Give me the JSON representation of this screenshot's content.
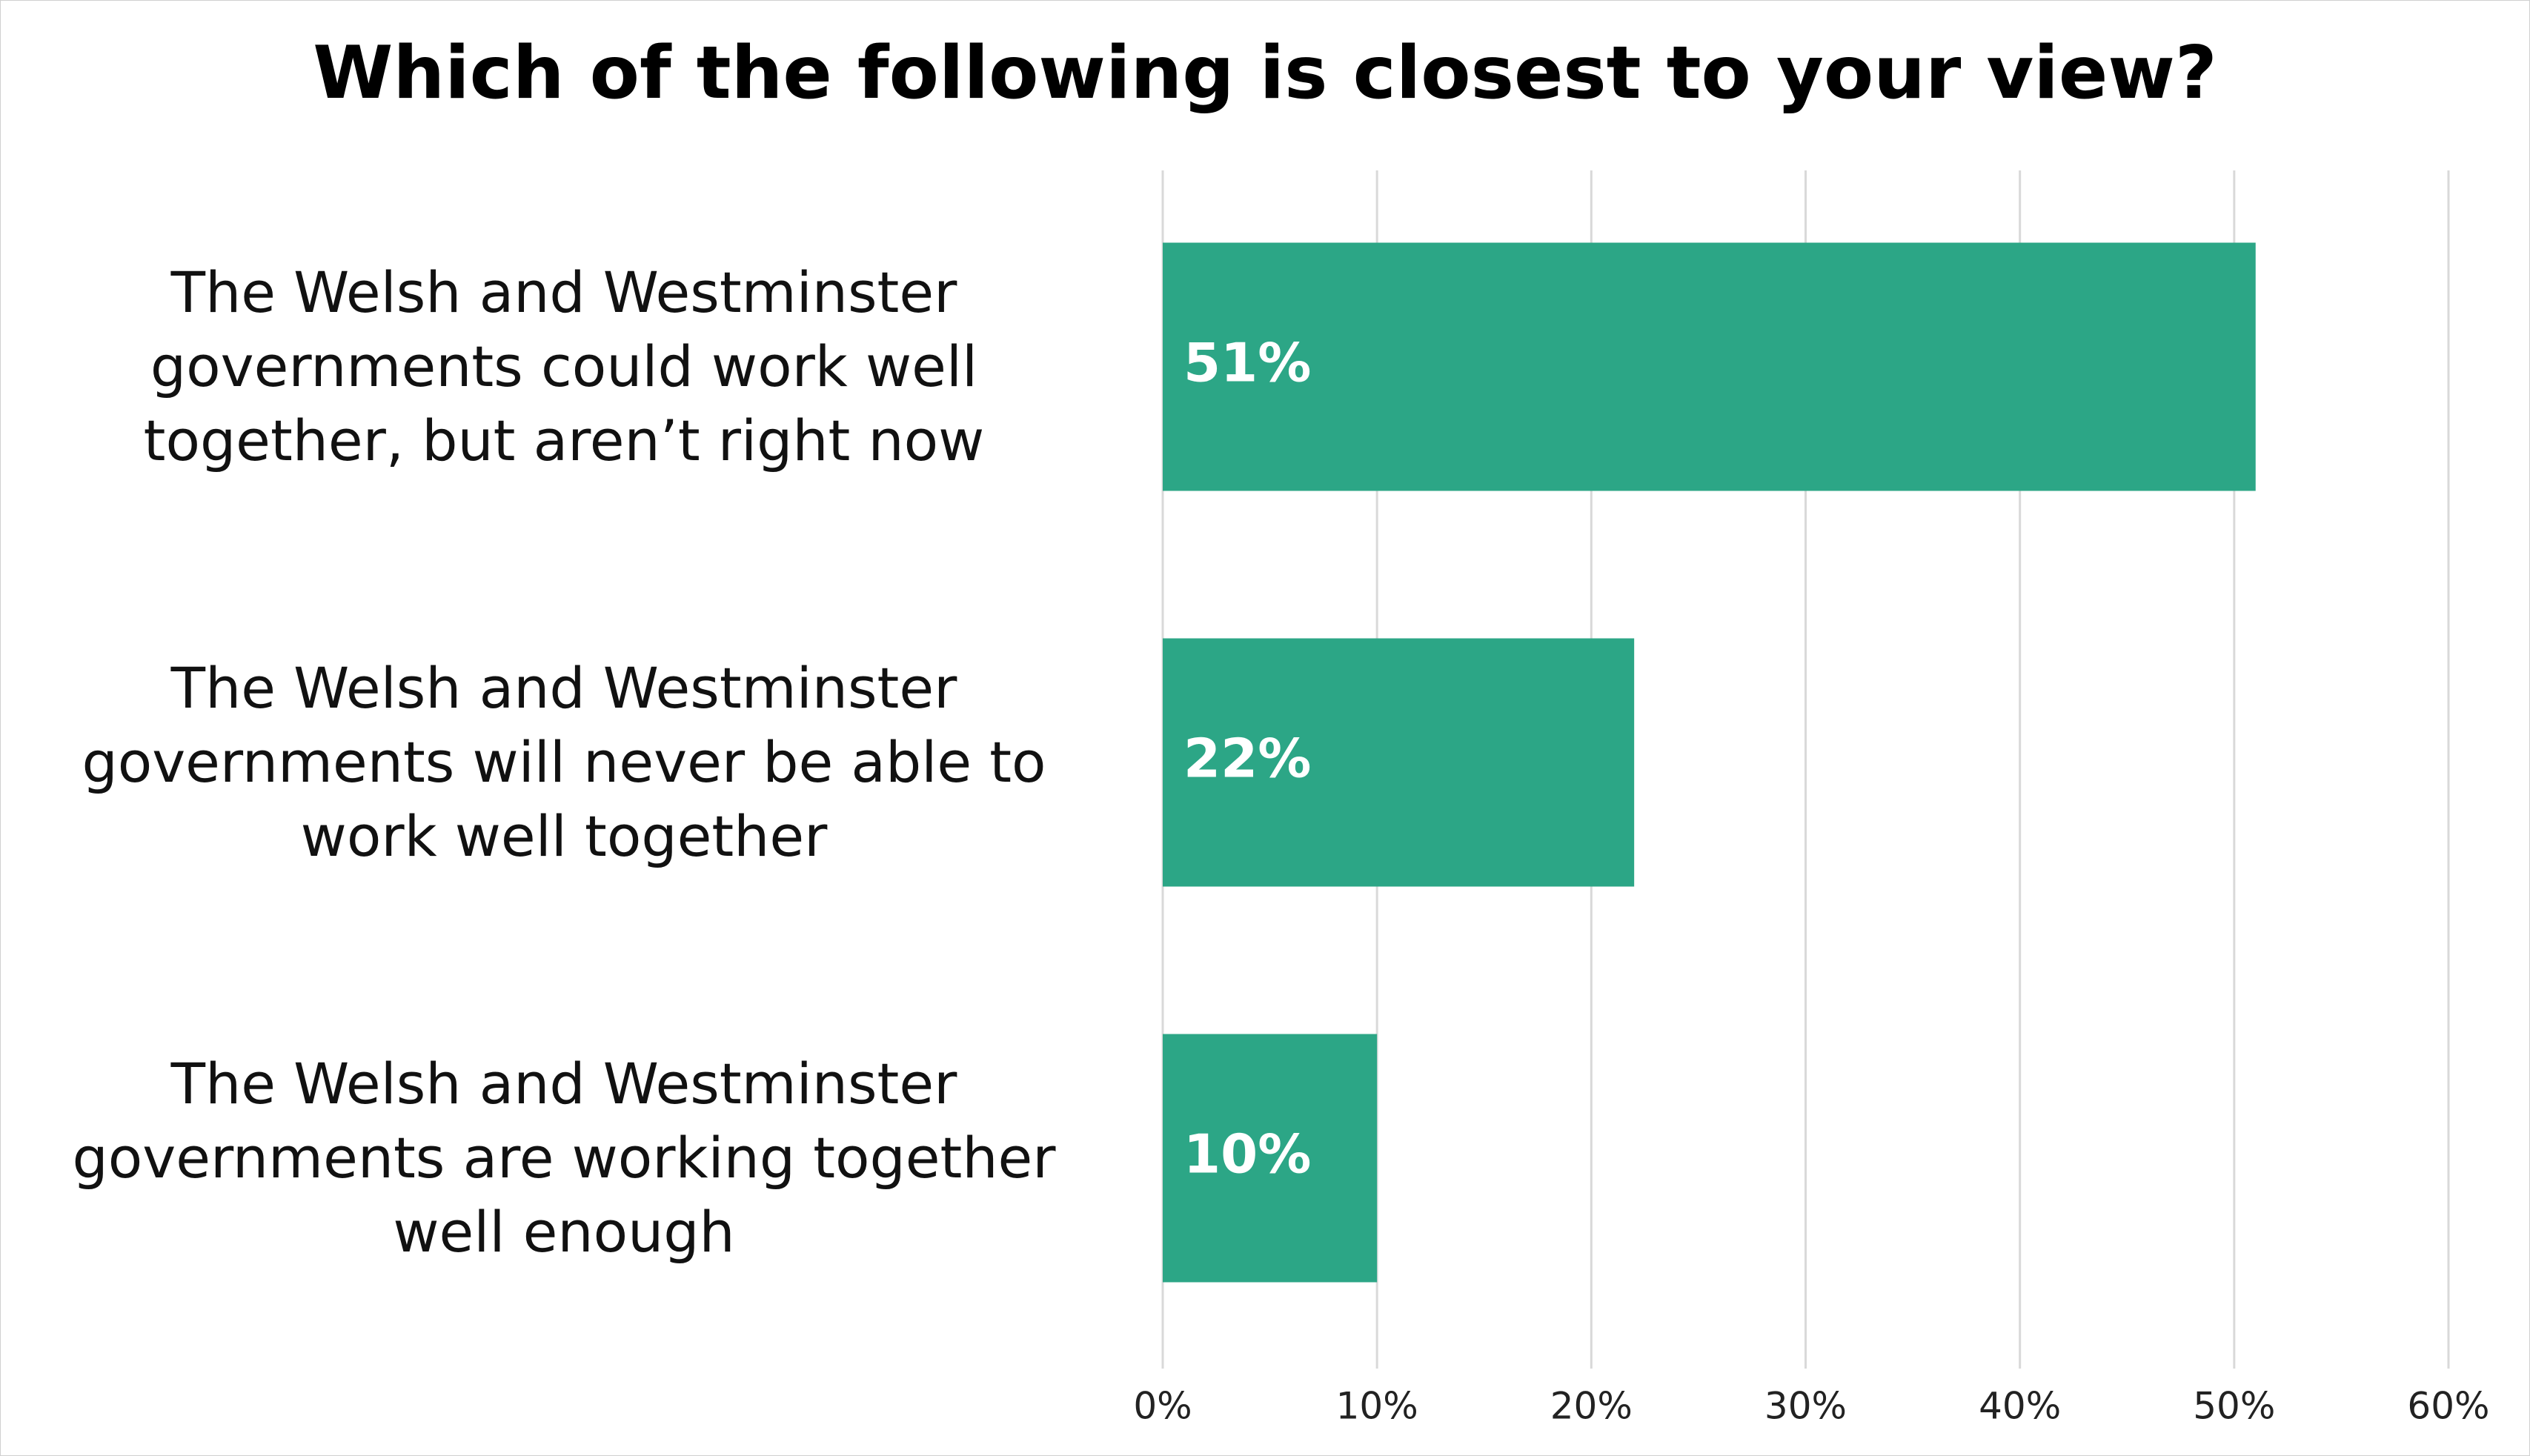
{
  "chart_data": {
    "type": "bar",
    "orientation": "horizontal",
    "title": "Which of the following is closest to your view?",
    "categories": [
      "The Welsh and Westminster governments could work well together, but aren’t right now",
      "The Welsh and Westminster governments will never be able to work well together",
      "The Welsh and Westminster governments are working together well enough"
    ],
    "values": [
      51,
      22,
      10
    ],
    "value_labels": [
      "51%",
      "22%",
      "10%"
    ],
    "color": "#2ca686",
    "xlim": [
      0,
      60
    ],
    "xticks": [
      {
        "value": 0,
        "label": "0%"
      },
      {
        "value": 10,
        "label": "10%"
      },
      {
        "value": 20,
        "label": "20%"
      },
      {
        "value": 30,
        "label": "30%"
      },
      {
        "value": 40,
        "label": "40%"
      },
      {
        "value": 50,
        "label": "50%"
      },
      {
        "value": 60,
        "label": "60%"
      }
    ],
    "grid": true
  }
}
